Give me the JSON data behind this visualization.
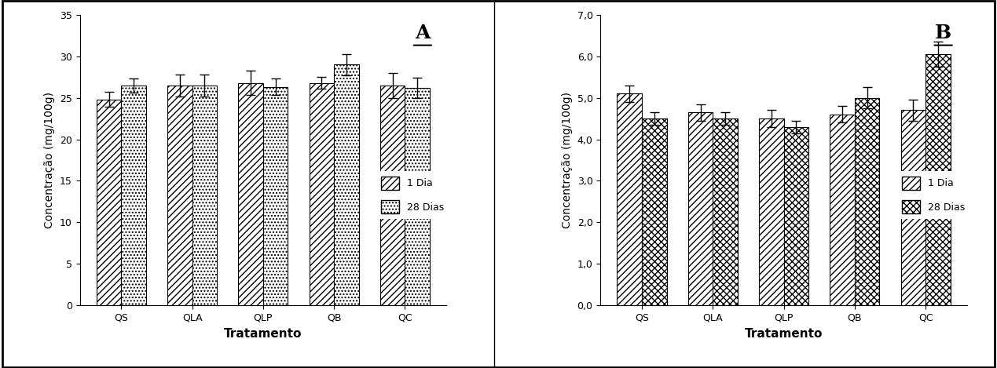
{
  "categories": [
    "QS",
    "QLA",
    "QLP",
    "QB",
    "QC"
  ],
  "chart_A": {
    "values_1dia": [
      24.8,
      26.5,
      26.8,
      26.8,
      26.5
    ],
    "values_28dias": [
      26.5,
      26.5,
      26.3,
      29.0,
      26.2
    ],
    "errors_1dia": [
      0.9,
      1.3,
      1.5,
      0.7,
      1.5
    ],
    "errors_28dias": [
      0.85,
      1.3,
      1.0,
      1.3,
      1.2
    ],
    "ylabel": "Concentração (mg/100g)",
    "xlabel": "Tratamento",
    "ylim": [
      0,
      35
    ],
    "yticks": [
      0,
      5,
      10,
      15,
      20,
      25,
      30,
      35
    ],
    "label": "A"
  },
  "chart_B": {
    "values_1dia": [
      5.1,
      4.65,
      4.5,
      4.6,
      4.7
    ],
    "values_28dias": [
      4.5,
      4.5,
      4.3,
      5.0,
      6.05
    ],
    "errors_1dia": [
      0.2,
      0.2,
      0.2,
      0.2,
      0.25
    ],
    "errors_28dias": [
      0.15,
      0.15,
      0.15,
      0.25,
      0.3
    ],
    "ylabel": "Concentração (mg/100g)",
    "xlabel": "Tratamento",
    "ylim": [
      0.0,
      7.0
    ],
    "yticks": [
      0.0,
      1.0,
      2.0,
      3.0,
      4.0,
      5.0,
      6.0,
      7.0
    ],
    "ytick_labels": [
      "0,0",
      "1,0",
      "2,0",
      "3,0",
      "4,0",
      "5,0",
      "6,0",
      "7,0"
    ],
    "label": "B"
  },
  "legend_labels": [
    "1 Dia",
    "28 Dias"
  ],
  "bar_width": 0.35,
  "background_color": "#ffffff",
  "edge_color": "#000000"
}
